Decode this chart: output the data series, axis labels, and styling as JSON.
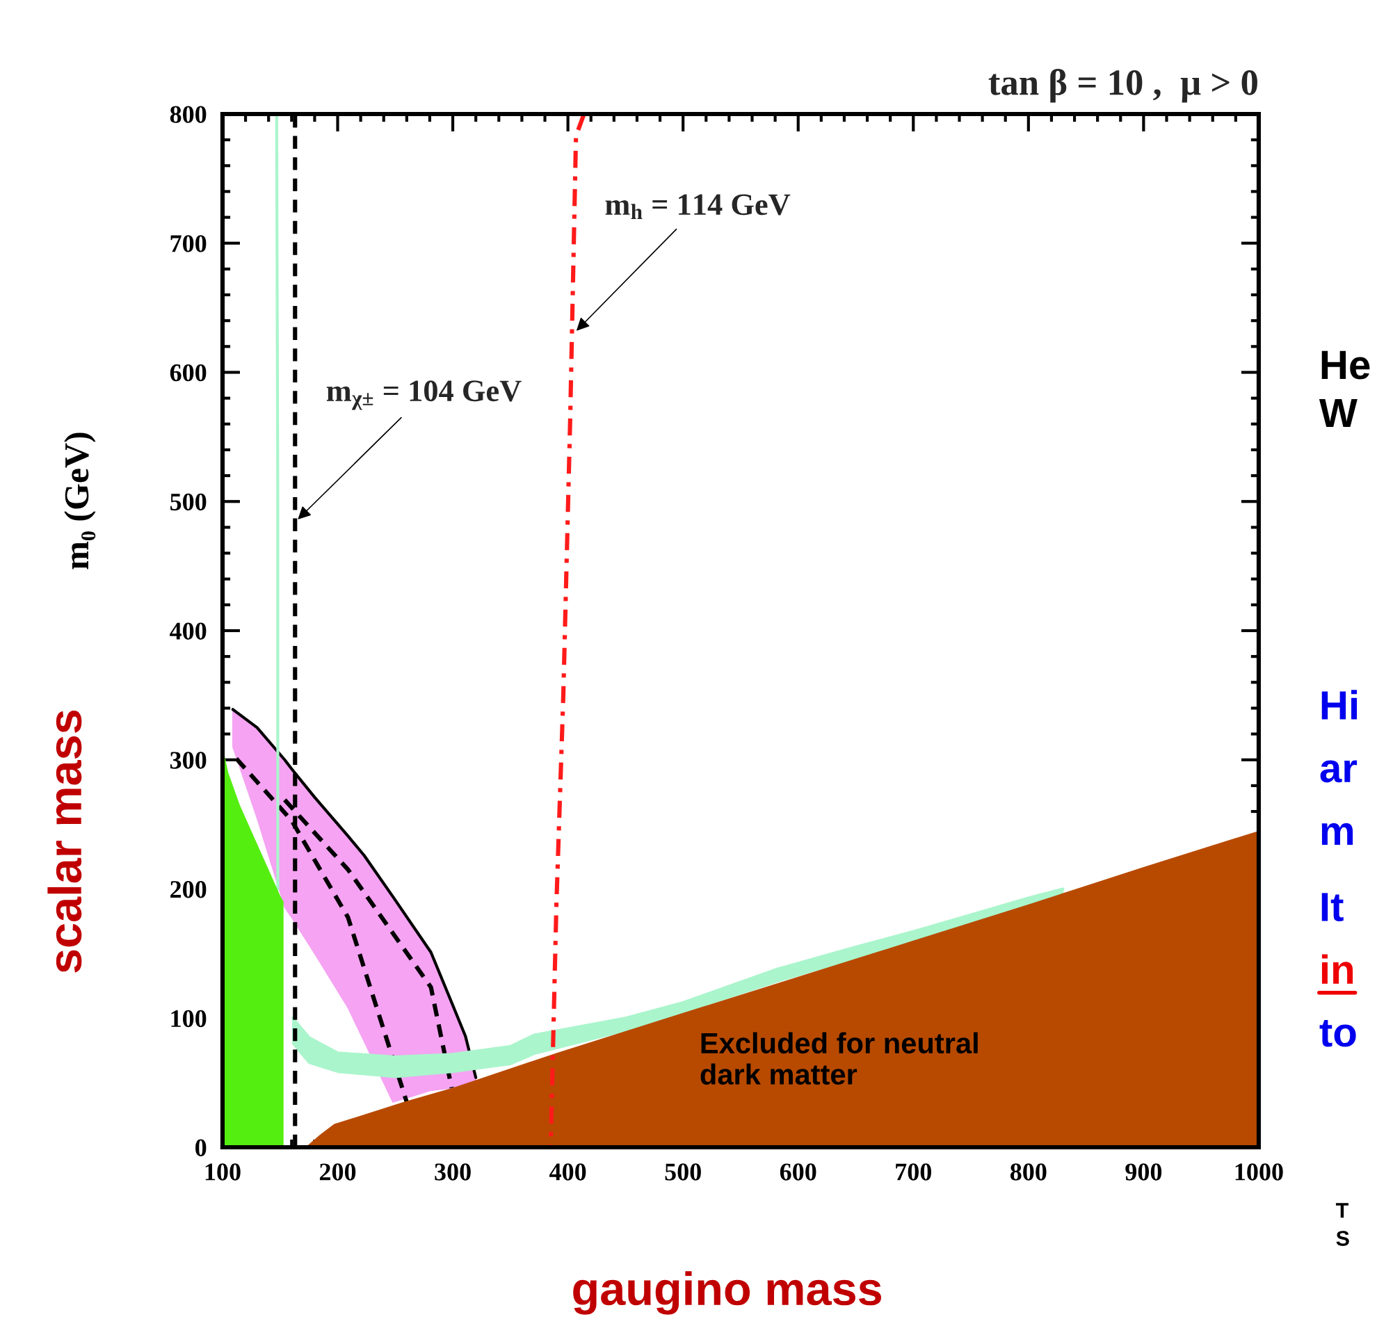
{
  "chart_data": {
    "type": "area",
    "title": "tan β = 10 ,  μ > 0",
    "xlabel": "gaugino mass",
    "ylabel": "scalar mass",
    "xlim": [
      100,
      1000
    ],
    "xticks": [
      100,
      200,
      300,
      400,
      500,
      600,
      700,
      800,
      900,
      1000
    ],
    "ylim": [
      0,
      800
    ],
    "yticks": [
      0,
      100,
      200,
      300,
      400,
      500,
      600,
      700,
      800
    ],
    "grid": false,
    "legend": false,
    "series": [
      {
        "type": "line",
        "color": "#000000",
        "line_style": "solid",
        "colors": [
          "#f5a3f2",
          "#f5a3f2",
          "#f5a3f2",
          "#f5a3f2",
          "#f5a3f2",
          "#f5a3f2",
          "#f5a3f2",
          "#f5a3f2",
          "#f5a3f2",
          "#f5a3f2",
          "#f5a3f2",
          "#f5a3f2"
        ],
        "x": [
          109,
          130,
          154,
          160,
          180,
          209,
          223,
          248,
          281,
          300,
          311,
          320
        ],
        "values": [
          339,
          325,
          300,
          293,
          271,
          241,
          226,
          194,
          151,
          110,
          86,
          54
        ],
        "upper": [
          339,
          325,
          300,
          293,
          271,
          241,
          226,
          194,
          151,
          110,
          86,
          54
        ],
        "lower": [
          310,
          255,
          186,
          178,
          150,
          108,
          82,
          35,
          44,
          46,
          49,
          52
        ]
      },
      {
        "type": "line",
        "color": "#000000",
        "line_style": "dashed",
        "x": [
          112,
          160,
          209,
          260
        ],
        "values": [
          301,
          253,
          178,
          35
        ]
      },
      {
        "type": "line",
        "color": "#000000",
        "line_style": "dashed",
        "x": [
          154,
          209,
          281,
          299
        ],
        "values": [
          269,
          215,
          124,
          46
        ]
      },
      {
        "type": "line",
        "color": "#aaf5cc",
        "line_style": "solid",
        "colors": [
          "#aaf5cc",
          "#aaf5cc",
          "#aaf5cc",
          "#aaf5cc",
          "#aaf5cc",
          "#aaf5cc",
          "#aaf5cc",
          "#aaf5cc",
          "#aaf5cc",
          "#aaf5cc",
          "#aaf5cc",
          "#aaf5cc",
          "#aaf5cc",
          "#aaf5cc",
          "#aaf5cc"
        ],
        "x": [
          161,
          175,
          200,
          250,
          300,
          350,
          371,
          450,
          500,
          582,
          650,
          700,
          750,
          800,
          830
        ],
        "values": [
          100,
          85,
          73,
          70,
          72,
          78,
          87,
          100,
          112,
          138,
          155,
          167,
          180,
          193,
          200
        ],
        "upper": [
          100,
          85,
          73,
          70,
          72,
          78,
          87,
          100,
          112,
          138,
          155,
          167,
          180,
          193,
          200
        ],
        "lower": [
          80,
          65,
          58,
          54,
          58,
          64,
          72,
          90,
          104,
          128,
          146,
          160,
          174,
          188,
          196
        ]
      },
      {
        "type": "line",
        "color": "#aaf5cc",
        "line_style": "solid",
        "x": [
          148,
          148,
          147
        ],
        "values": [
          200,
          500,
          800
        ]
      },
      {
        "color": "#55ee11",
        "x": [
          100,
          105,
          115,
          125,
          135,
          145,
          150,
          153,
          153
        ],
        "values": [
          310,
          290,
          265,
          245,
          225,
          205,
          195,
          190,
          0
        ]
      },
      {
        "color": "#b84a00",
        "x": [
          172,
          185,
          197,
          257,
          300,
          390,
          500,
          600,
          700,
          800,
          900,
          1000
        ],
        "values": [
          0,
          10,
          18,
          35,
          46,
          73,
          104,
          132,
          160,
          188,
          217,
          245
        ]
      },
      {
        "type": "line",
        "color": "#000000",
        "line_style": "dashed",
        "x": [
          163,
          163
        ],
        "values": [
          0,
          800
        ]
      },
      {
        "type": "line",
        "color": "#ff1a1a",
        "line_style": "dashdot",
        "x": [
          414,
          407,
          402,
          396,
          390,
          385
        ],
        "values": [
          800,
          783,
          565,
          350,
          188,
          0
        ]
      }
    ],
    "annotations": [
      {
        "text": "m$_{χ±}$ = 104 GeV",
        "x": 163,
        "y": 484
      },
      {
        "text": "m$_{h}$ = 114 GeV",
        "x": 405,
        "y": 630
      },
      "Excluded for neutral\ndark matter",
      "m₀ (GeV)",
      "He",
      "W",
      "Hi",
      "ar",
      "m",
      "It",
      "in",
      "to",
      "T",
      "S"
    ]
  }
}
